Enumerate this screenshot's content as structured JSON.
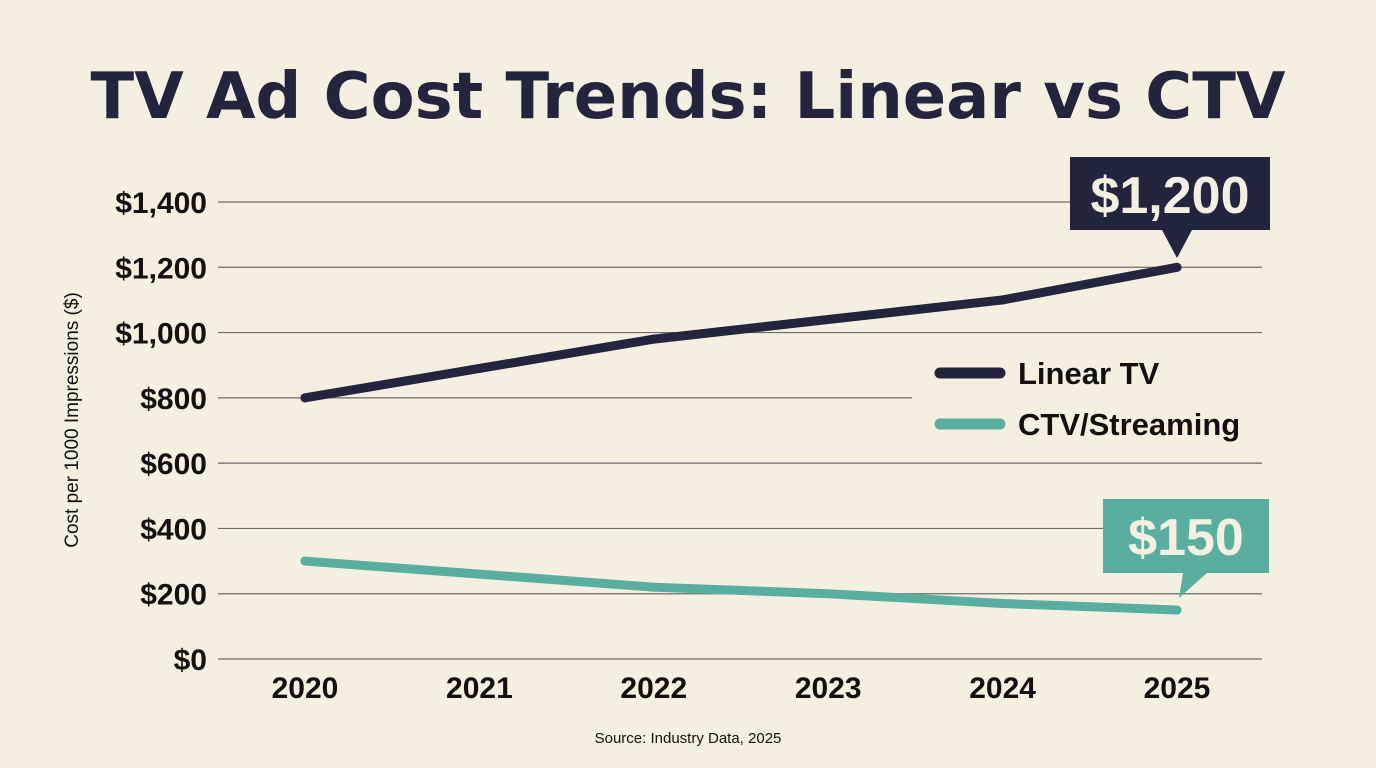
{
  "chart_data": {
    "type": "line",
    "title": "TV Ad Cost Trends: Linear vs CTV",
    "ylabel": "Cost per 1000 Impressions ($)",
    "xlabel": "",
    "source": "Source: Industry Data, 2025",
    "categories": [
      "2020",
      "2021",
      "2022",
      "2023",
      "2024",
      "2025"
    ],
    "y_ticks": [
      "$0",
      "$200",
      "$400",
      "$600",
      "$800",
      "$1,000",
      "$1,200",
      "$1,400"
    ],
    "ylim": [
      0,
      1400
    ],
    "grid": true,
    "legend_position": "right",
    "series": [
      {
        "name": "Linear TV",
        "color": "#24243f",
        "values": [
          800,
          890,
          980,
          1040,
          1100,
          1200
        ],
        "annotation": "$1,200"
      },
      {
        "name": "CTV/Streaming",
        "color": "#5aae9f",
        "values": [
          300,
          260,
          220,
          200,
          170,
          150
        ],
        "annotation": "$150"
      }
    ]
  },
  "colors": {
    "background": "#f3f0e1",
    "title": "#24243f",
    "grid": "#6b6b6b"
  }
}
